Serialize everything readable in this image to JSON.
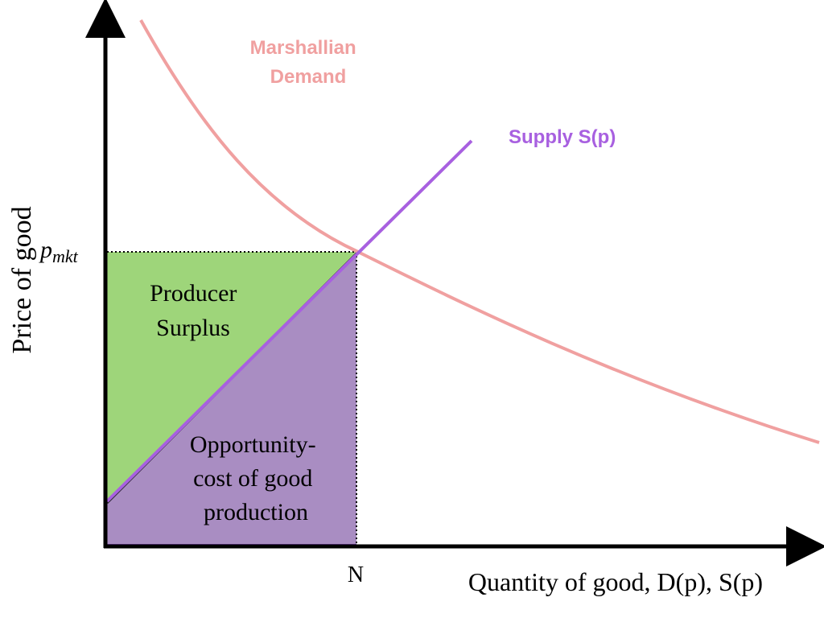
{
  "chart_data": {
    "type": "diagram",
    "xlabel": "Quantity of good, D(p), S(p)",
    "ylabel": "Price of good",
    "x_tick_label": "N",
    "y_tick_label": "p",
    "y_tick_subscript": "mkt",
    "curves": {
      "demand": {
        "label_line1": "Marshallian",
        "label_line2": "Demand",
        "color": "#f0a0a0"
      },
      "supply": {
        "label": "Supply S(p)",
        "color": "#a860e0"
      }
    },
    "regions": {
      "producer_surplus": {
        "label_line1": "Producer",
        "label_line2": "Surplus",
        "color": "#9ed57a"
      },
      "opportunity_cost": {
        "label_line1": "Opportunity-",
        "label_line2": "cost of good",
        "label_line3": "production",
        "color": "#a98dc2"
      }
    }
  }
}
